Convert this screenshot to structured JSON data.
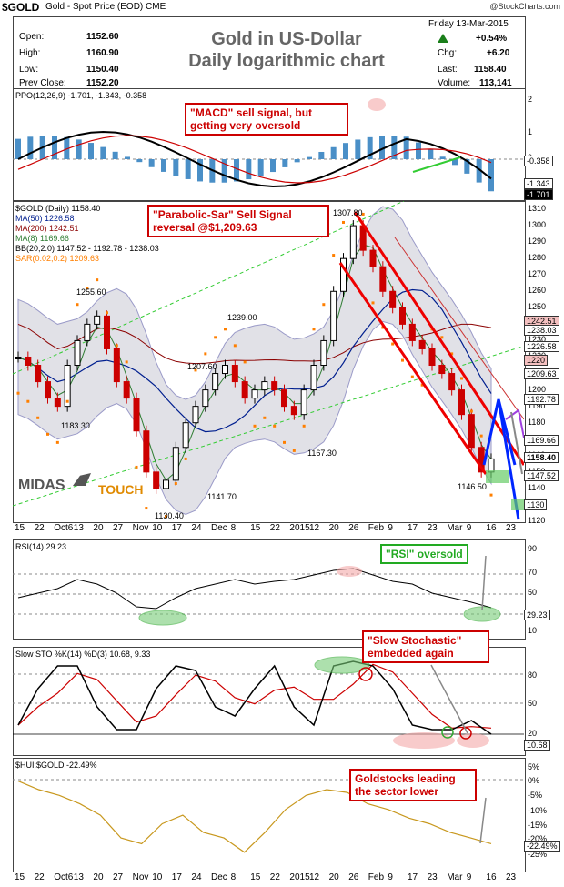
{
  "header": {
    "ticker": "$GOLD",
    "subtitle": "Gold - Spot Price (EOD) CME",
    "credit": "@StockCharts.com"
  },
  "quote": {
    "open_label": "Open:",
    "open": "1152.60",
    "high_label": "High:",
    "high": "1160.90",
    "low_label": "Low:",
    "low": "1150.40",
    "prev_label": "Prev Close:",
    "prev": "1152.20",
    "date": "Friday   13-Mar-2015",
    "pct": "+0.54%",
    "chg_label": "Chg:",
    "chg": "+6.20",
    "last_label": "Last:",
    "last": "1158.40",
    "vol_label": "Volume:",
    "vol": "113,141"
  },
  "title": {
    "line1": "Gold in US-Dollar",
    "line2": "Daily logarithmic chart"
  },
  "callouts": {
    "macd": "\"MACD\" sell signal, but getting very oversold",
    "sar": "\"Parabolic-Sar\" Sell Signal reversal @$1,209.63",
    "rsi": "\"RSI\" oversold",
    "sto": "\"Slow Stochastic\" embedded again",
    "hui": "Goldstocks leading the sector lower"
  },
  "watermark": {
    "left": "MIDAS",
    "right": "TOUCH"
  },
  "ppo": {
    "legend": "PPO(12,26,9) -1.701, -1.343, -0.358",
    "ticks": [
      "2",
      "1",
      "0",
      "-1"
    ],
    "tags": [
      "-0.358",
      "-1.343",
      "-1.701"
    ]
  },
  "main": {
    "legend": [
      "$GOLD (Daily) 1158.40",
      "MA(50) 1226.58",
      "MA(200) 1242.51",
      "MA(8) 1169.66",
      "BB(20,2.0) 1147.52 - 1192.78 - 1238.03",
      "SAR(0.02,0.2) 1209.63"
    ],
    "ticks": [
      "1310",
      "1300",
      "1290",
      "1280",
      "1270",
      "1260",
      "1250",
      "1240",
      "1230",
      "1220",
      "1210",
      "1200",
      "1190",
      "1180",
      "1170",
      "1160",
      "1150",
      "1140",
      "1130",
      "1120"
    ],
    "tags": [
      "1242.51",
      "1238.03",
      "1226.58",
      "1220",
      "1209.63",
      "1192.78",
      "1169.66",
      "1158.40",
      "1147.52",
      "1130"
    ],
    "annotations": [
      "1307.80",
      "1255.60",
      "1239.00",
      "1207.60",
      "1183.30",
      "1167.30",
      "1141.70",
      "1130.40",
      "1146.50"
    ]
  },
  "rsi": {
    "legend": "RSI(14) 29.23",
    "ticks": [
      "90",
      "70",
      "50",
      "30",
      "10"
    ],
    "tag": "29.23"
  },
  "sto": {
    "legend": "Slow STO %K(14) %D(3) 10.68, 9.33",
    "ticks": [
      "80",
      "50",
      "20"
    ],
    "tag": "10.68"
  },
  "hui": {
    "legend": "$HUI:$GOLD -22.49%",
    "ticks": [
      "5%",
      "0%",
      "-5%",
      "-10%",
      "-15%",
      "-20%",
      "-25%"
    ],
    "tag": "-22.49%"
  },
  "xaxis": [
    "15",
    "22",
    "Oct6",
    "13",
    "20",
    "27",
    "Nov",
    "10",
    "17",
    "24",
    "Dec",
    "8",
    "15",
    "22",
    "2015",
    "12",
    "20",
    "26",
    "Feb",
    "9",
    "17",
    "23",
    "Mar",
    "9",
    "16",
    "23"
  ],
  "colors": {
    "price_up": "#000000",
    "price_down": "#cc0000",
    "ma50": "#001f8f",
    "ma200": "#8b0000",
    "ma8": "#2e7d32",
    "bb": "#9a9ac8",
    "sar": "#ff7f00",
    "channel": "#33bb33",
    "callout": "#cc0000",
    "hui": "#c8981e"
  },
  "chart_data": [
    {
      "type": "line",
      "title": "Gold in US-Dollar Daily logarithmic chart",
      "series": [
        {
          "name": "$GOLD",
          "values": [
            1220,
            1215,
            1205,
            1195,
            1190,
            1215,
            1230,
            1240,
            1245,
            1225,
            1205,
            1195,
            1175,
            1150,
            1140,
            1145,
            1165,
            1180,
            1190,
            1200,
            1210,
            1215,
            1205,
            1195,
            1200,
            1205,
            1200,
            1190,
            1185,
            1200,
            1215,
            1230,
            1260,
            1280,
            1300,
            1285,
            1275,
            1260,
            1250,
            1240,
            1230,
            1225,
            1215,
            1210,
            1200,
            1185,
            1165,
            1150,
            1158
          ]
        }
      ],
      "ylim": [
        1120,
        1315
      ]
    },
    {
      "type": "line",
      "title": "RSI(14)",
      "ylim": [
        0,
        100
      ],
      "series": [
        {
          "name": "RSI(14)",
          "values": [
            40,
            45,
            50,
            60,
            55,
            45,
            30,
            28,
            40,
            50,
            55,
            60,
            55,
            58,
            60,
            65,
            70,
            72,
            65,
            58,
            55,
            45,
            40,
            35,
            29
          ]
        }
      ]
    },
    {
      "type": "line",
      "title": "Slow STO %K(14) %D(3)",
      "ylim": [
        0,
        100
      ],
      "series": [
        {
          "name": "%K",
          "values": [
            20,
            60,
            85,
            85,
            40,
            15,
            15,
            60,
            85,
            80,
            40,
            30,
            60,
            85,
            40,
            20,
            85,
            90,
            85,
            60,
            20,
            15,
            15,
            25,
            10
          ]
        }
      ]
    },
    {
      "type": "line",
      "title": "$HUI:$GOLD",
      "ylim": [
        -27,
        5
      ],
      "series": [
        {
          "name": "$HUI:$GOLD",
          "values": [
            0,
            -3,
            -5,
            -8,
            -12,
            -20,
            -22,
            -15,
            -12,
            -18,
            -20,
            -25,
            -18,
            -10,
            -5,
            -3,
            -4,
            -8,
            -10,
            -13,
            -15,
            -18,
            -20,
            -22
          ]
        }
      ]
    }
  ]
}
